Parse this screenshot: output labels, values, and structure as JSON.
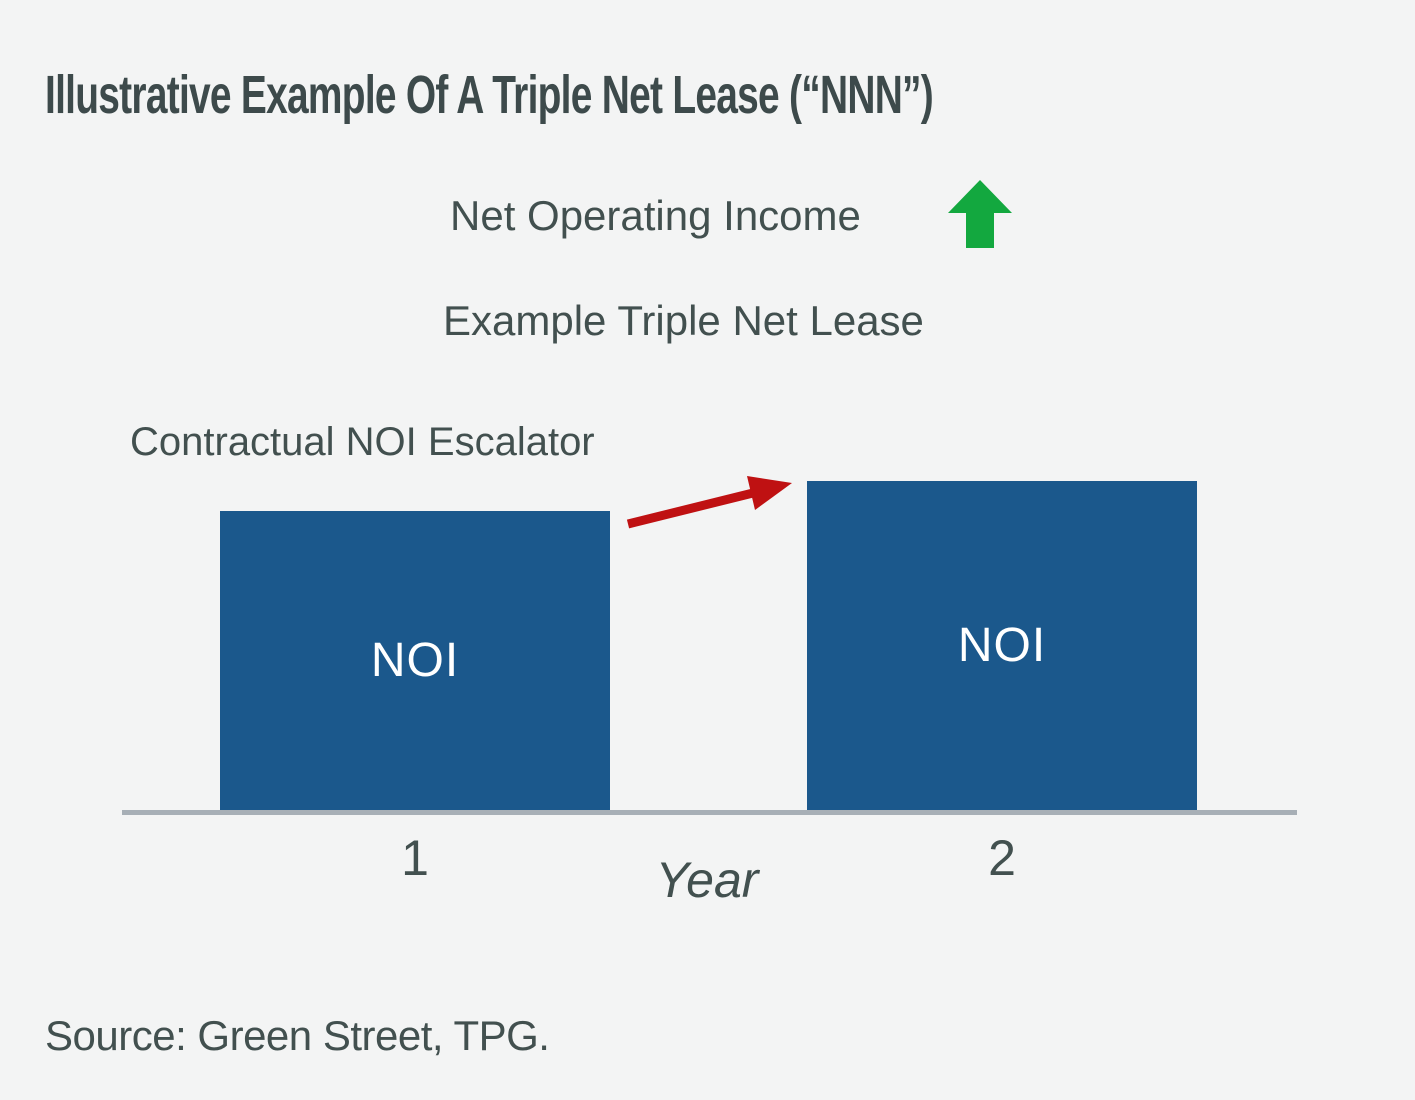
{
  "title": "Illustrative Example Of A Triple Net Lease (“NNN”)",
  "header": {
    "legend_label": "Net Operating Income",
    "legend_icon": "green-up-arrow-icon",
    "subtitle": "Example Triple Net Lease"
  },
  "annotation": {
    "label": "Contractual NOI Escalator",
    "arrow_icon": "red-escalator-arrow-icon"
  },
  "chart_data": {
    "type": "bar",
    "categories": [
      "1",
      "2"
    ],
    "values": [
      100,
      110
    ],
    "series_name": "NOI",
    "bar_labels": [
      "NOI",
      "NOI"
    ],
    "xlabel": "Year",
    "ylabel": "",
    "y_axis_visible": false,
    "grid": false,
    "legend_position": "top-center",
    "annotations": [
      "Red arrow labeled 'Contractual NOI Escalator' points from top of Year 1 bar to top of Year 2 bar",
      "Green up arrow next to 'Net Operating Income' indicates NOI increases"
    ]
  },
  "footer": {
    "source": "Source: Green Street, TPG."
  },
  "colors": {
    "background": "#f3f4f4",
    "bar_fill": "#1b588c",
    "bar_label_text": "#ffffff",
    "text": "#42504f",
    "title_text": "#3d4a4b",
    "axis_line": "#a7afb6",
    "escalator_arrow_red": "#bf1112",
    "up_arrow_green": "#13a83f"
  }
}
